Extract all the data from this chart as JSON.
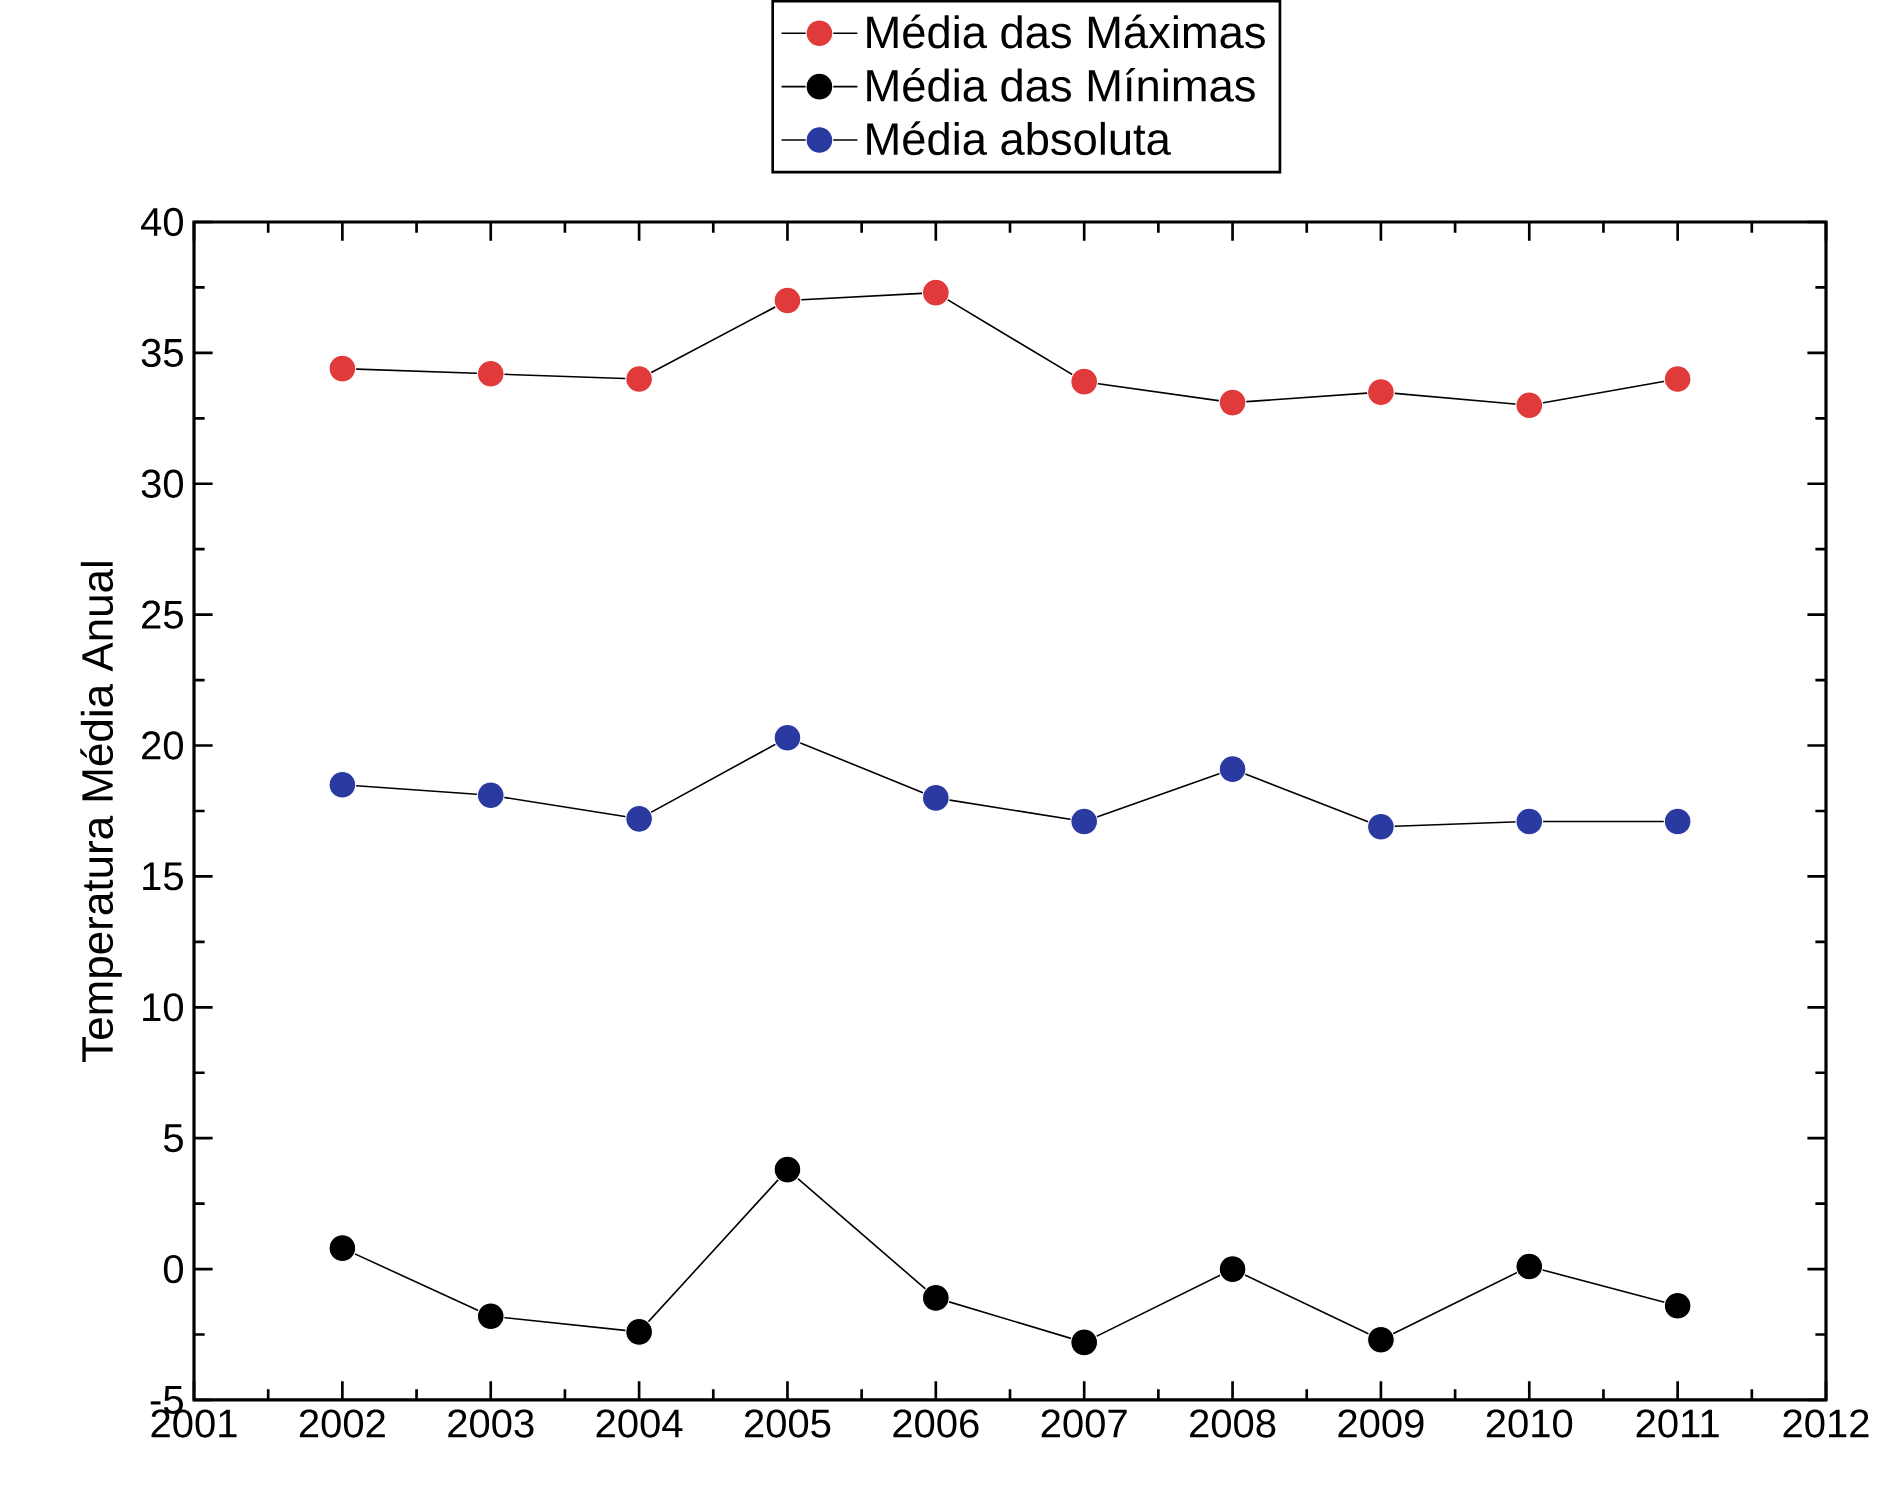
{
  "chart_data": {
    "type": "line",
    "ylabel": "Temperatura Média Anual",
    "x": [
      2002,
      2003,
      2004,
      2005,
      2006,
      2007,
      2008,
      2009,
      2010,
      2011
    ],
    "series": [
      {
        "name": "Média das Máximas",
        "color": "#e03a3a",
        "values": [
          34.4,
          34.2,
          34.0,
          37.0,
          37.3,
          33.9,
          33.1,
          33.5,
          33.0,
          34.0
        ]
      },
      {
        "name": "Média das Mínimas",
        "color": "#000000",
        "values": [
          0.8,
          -1.8,
          -2.4,
          3.8,
          -1.1,
          -2.8,
          0.0,
          -2.7,
          0.1,
          -1.4
        ]
      },
      {
        "name": "Média absoluta",
        "color": "#2a3aa0",
        "values": [
          18.5,
          18.1,
          17.2,
          20.3,
          18.0,
          17.1,
          19.1,
          16.9,
          17.1,
          17.1
        ]
      }
    ],
    "xlim": [
      2001,
      2012
    ],
    "xticks": [
      2001,
      2002,
      2003,
      2004,
      2005,
      2006,
      2007,
      2008,
      2009,
      2010,
      2011,
      2012
    ],
    "ylim": [
      -5,
      40
    ],
    "yticks": [
      -5,
      0,
      5,
      10,
      15,
      20,
      25,
      30,
      35,
      40
    ],
    "legend": "top",
    "marker": "circle",
    "line_style": "solid",
    "grid": false
  }
}
